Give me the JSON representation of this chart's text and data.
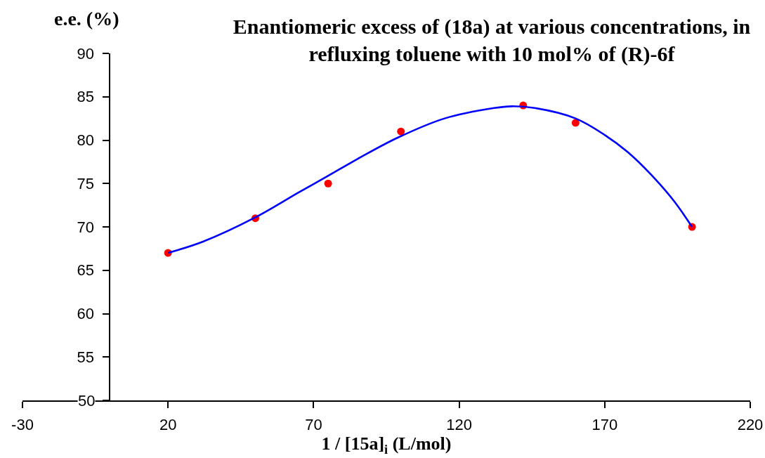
{
  "chart_data": {
    "type": "scatter",
    "title": "Enantiomeric excess of (18a) at various concentrations, in\nrefluxing toluene with 10 mol% of (R)-6f",
    "xlabel": "1 / [15a]$_{i}$ (L/mol)",
    "ylabel": "e.e. (%)",
    "xlim": [
      -30,
      220
    ],
    "xticks": [
      -30,
      20,
      70,
      120,
      170,
      220
    ],
    "ylim": [
      50,
      90
    ],
    "yticks": [
      50,
      55,
      60,
      65,
      70,
      75,
      80,
      85,
      90
    ],
    "grid": false,
    "series": [
      {
        "color": "#ff0000",
        "marker": "circle",
        "x": [
          20,
          50,
          75,
          100,
          142,
          160,
          200
        ],
        "values": [
          67,
          71,
          75,
          81,
          84,
          82,
          70
        ]
      },
      {
        "type": "line",
        "color": "#0000ff",
        "marker": "none",
        "line_style": "solid",
        "x": [
          20,
          32,
          50,
          65,
          74,
          86,
          99,
          115,
          132,
          138,
          146,
          160,
          170,
          178,
          186,
          194,
          200
        ],
        "values": [
          67.0,
          68.3,
          71.1,
          74.0,
          75.7,
          78.0,
          80.3,
          82.5,
          83.7,
          83.9,
          83.7,
          82.5,
          80.6,
          78.6,
          76.0,
          72.9,
          70.0
        ]
      }
    ]
  }
}
